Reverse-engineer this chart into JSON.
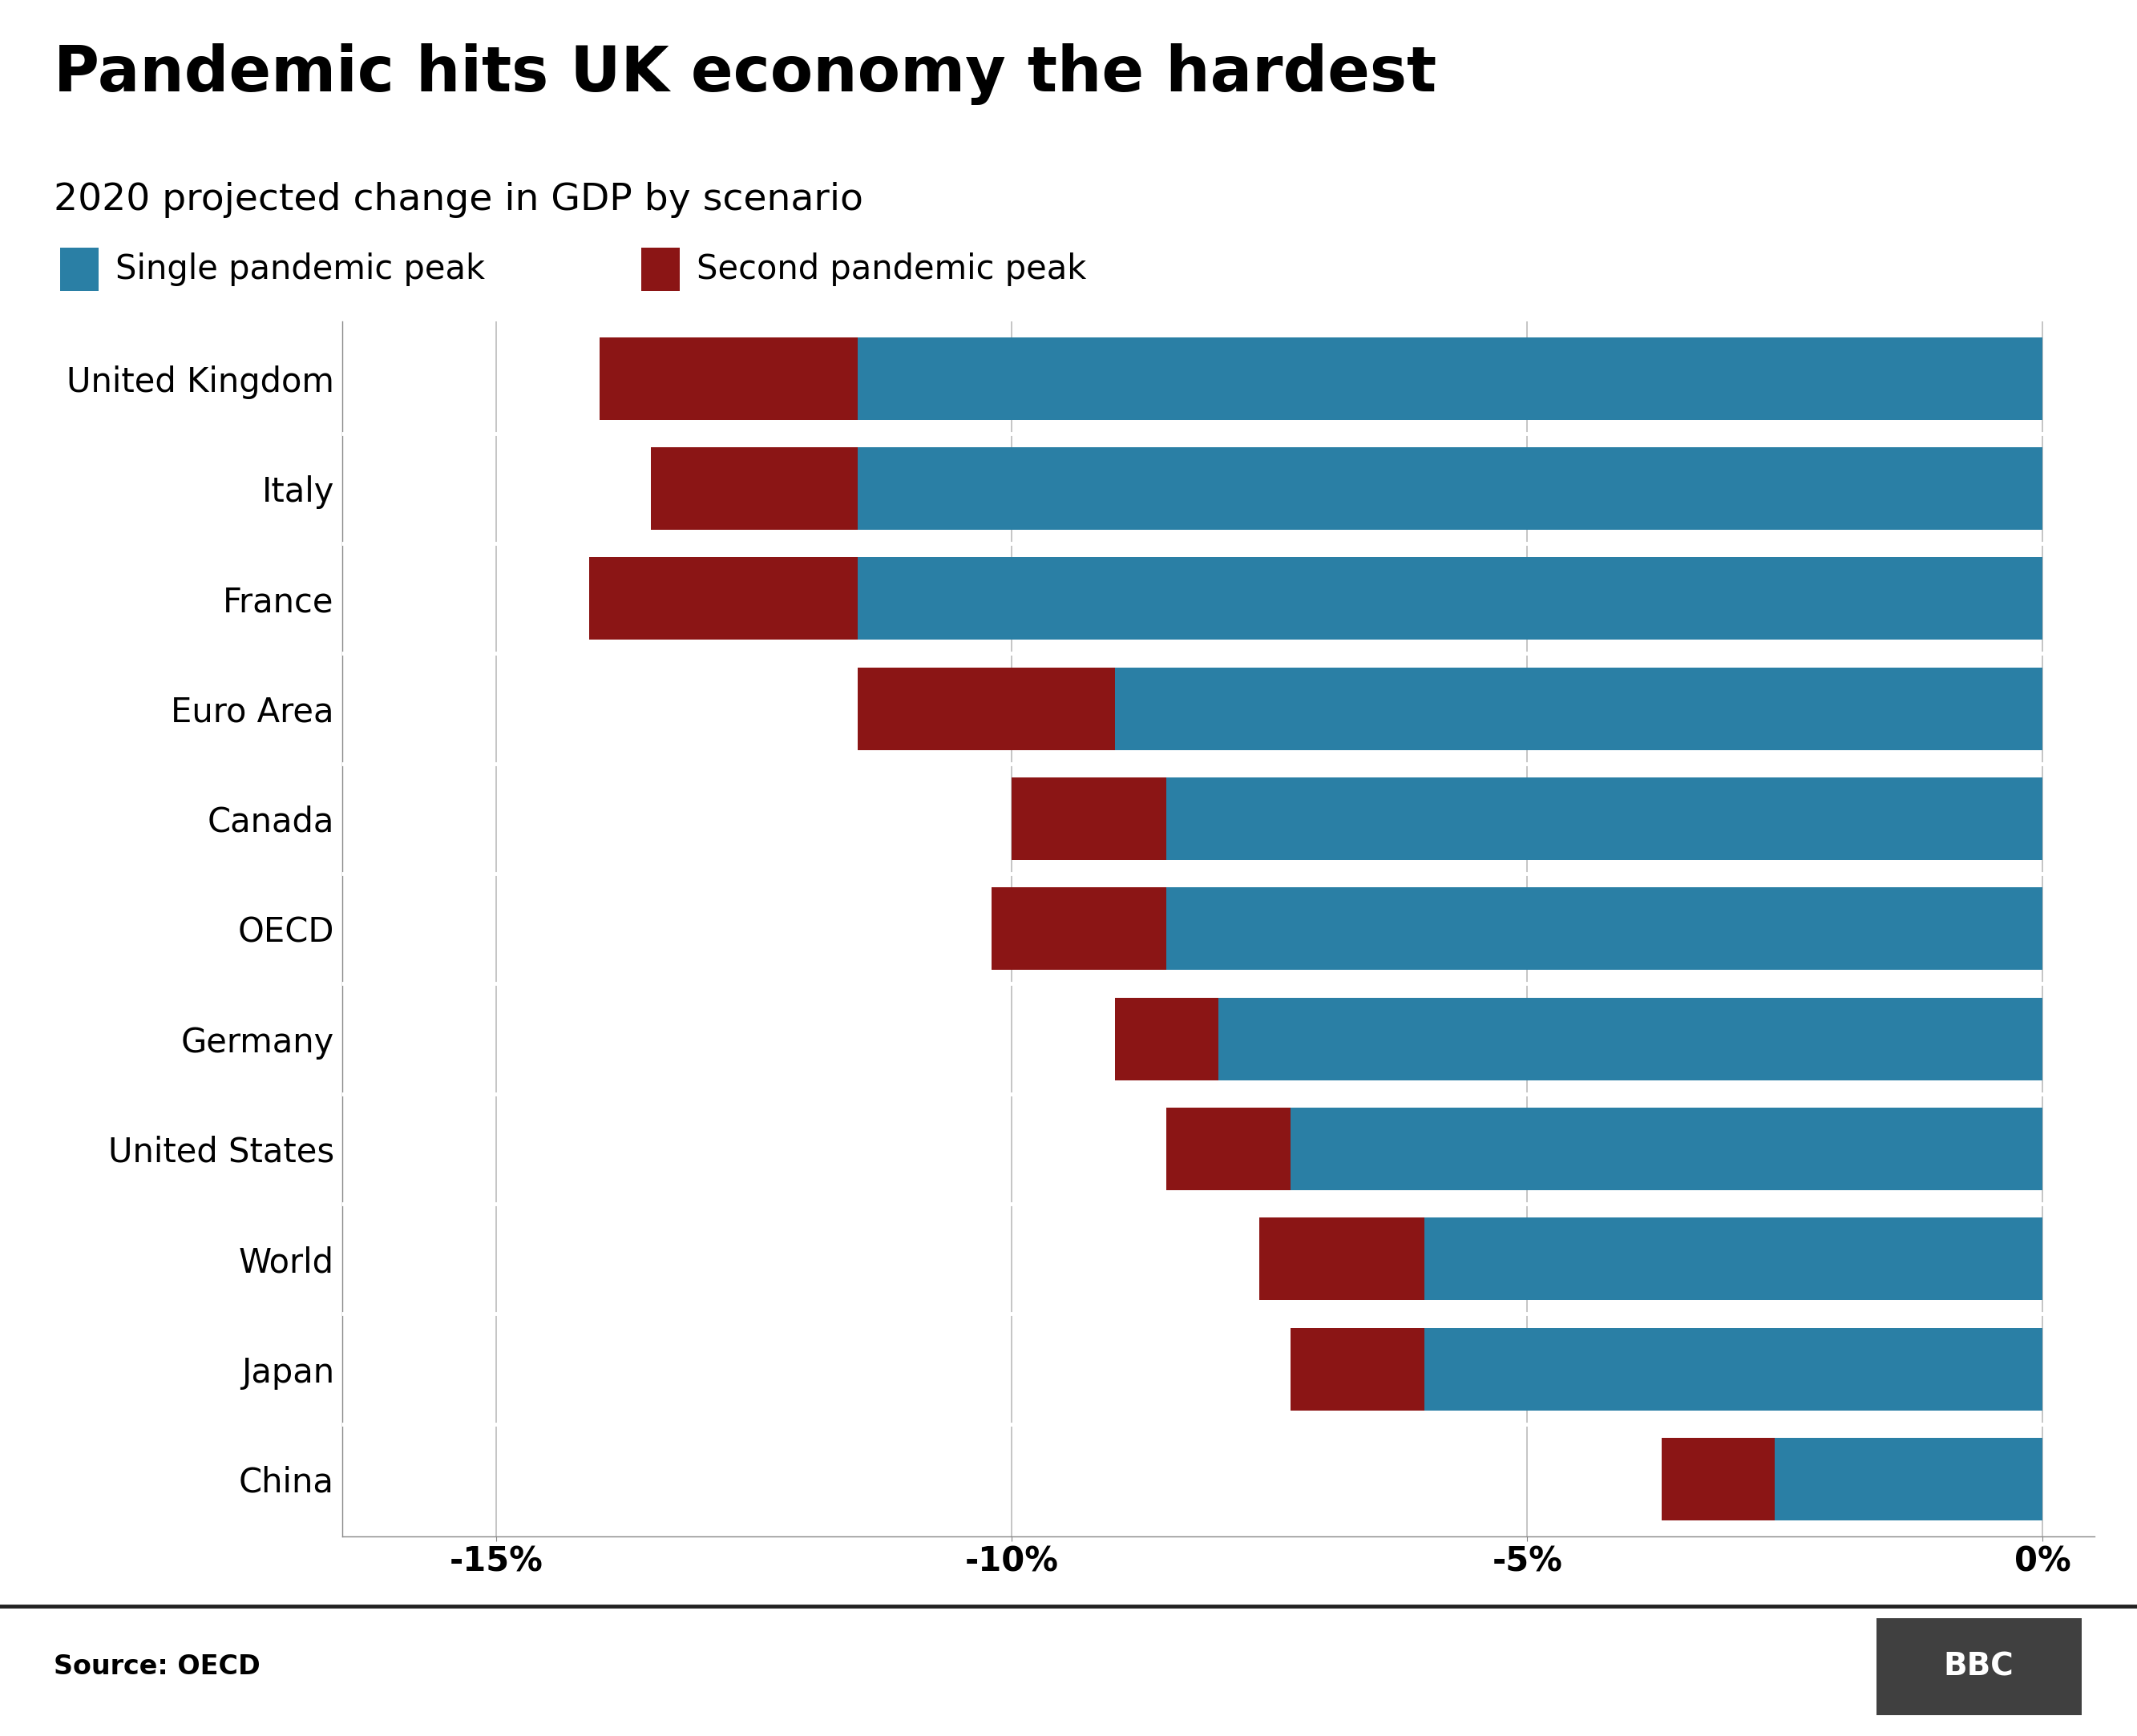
{
  "title": "Pandemic hits UK economy the hardest",
  "subtitle": "2020 projected change in GDP by scenario",
  "legend_single": "Single pandemic peak",
  "legend_second": "Second pandemic peak",
  "color_single": "#2a7fa5",
  "color_second": "#8b1515",
  "source": "Source: OECD",
  "bbc_logo": "BBC",
  "categories": [
    "United Kingdom",
    "Italy",
    "France",
    "Euro Area",
    "Canada",
    "OECD",
    "Germany",
    "United States",
    "World",
    "Japan",
    "China"
  ],
  "single_peak": [
    -11.5,
    -11.5,
    -11.5,
    -9.0,
    -8.5,
    -8.5,
    -8.0,
    -7.3,
    -6.0,
    -6.0,
    -2.6
  ],
  "second_peak": [
    -14.0,
    -13.5,
    -14.1,
    -11.5,
    -10.0,
    -10.2,
    -9.0,
    -8.5,
    -7.6,
    -7.3,
    -3.7
  ],
  "xlim": [
    -16.5,
    0.5
  ],
  "xticks": [
    -15,
    -10,
    -5,
    0
  ],
  "xticklabels": [
    "-15%",
    "-10%",
    "-5%",
    "0%"
  ],
  "background_color": "#ffffff",
  "title_fontsize": 56,
  "subtitle_fontsize": 34,
  "legend_fontsize": 30,
  "tick_fontsize": 30,
  "label_fontsize": 30,
  "bar_height": 0.75,
  "bbc_bg": "#404040"
}
